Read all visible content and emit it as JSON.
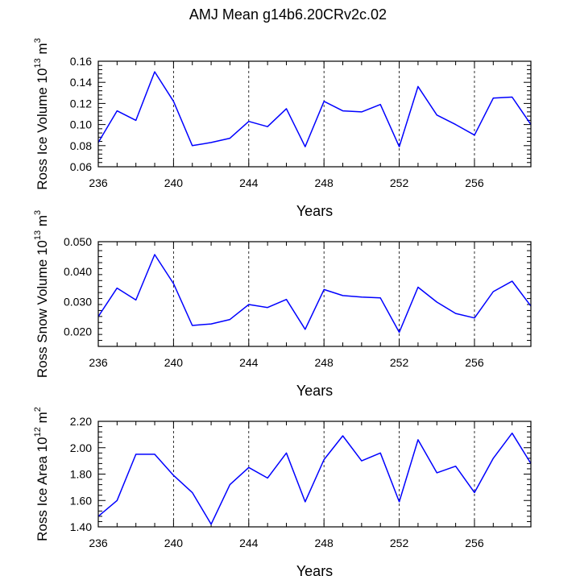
{
  "title": "AMJ Mean g14b6.20CRv2c.02",
  "chart_data": [
    {
      "type": "line",
      "ylabel": "Ross Ice Volume 10",
      "ylabel_exp": "13",
      "ylabel_unit": " m",
      "ylabel_unit_exp": "3",
      "xlabel": "Years",
      "xlim": [
        236,
        259
      ],
      "ylim": [
        0.06,
        0.16
      ],
      "xticks": [
        "236",
        "240",
        "244",
        "248",
        "252",
        "256"
      ],
      "yticks": [
        "0.06",
        "0.08",
        "0.10",
        "0.12",
        "0.14",
        "0.16"
      ],
      "x": [
        236,
        237,
        238,
        239,
        240,
        241,
        242,
        243,
        244,
        245,
        246,
        247,
        248,
        249,
        250,
        251,
        252,
        253,
        254,
        255,
        256,
        257,
        258,
        259
      ],
      "values": [
        0.083,
        0.113,
        0.104,
        0.15,
        0.122,
        0.08,
        0.083,
        0.087,
        0.103,
        0.098,
        0.115,
        0.079,
        0.122,
        0.113,
        0.112,
        0.119,
        0.079,
        0.136,
        0.109,
        0.1,
        0.09,
        0.125,
        0.126,
        0.1
      ],
      "color": "#0000ff"
    },
    {
      "type": "line",
      "ylabel": "Ross Snow Volume 10",
      "ylabel_exp": "13",
      "ylabel_unit": " m",
      "ylabel_unit_exp": "3",
      "xlabel": "Years",
      "xlim": [
        236,
        259
      ],
      "ylim": [
        0.015,
        0.05
      ],
      "xticks": [
        "236",
        "240",
        "244",
        "248",
        "252",
        "256"
      ],
      "yticks": [
        "0.020",
        "0.030",
        "0.040",
        "0.050"
      ],
      "x": [
        236,
        237,
        238,
        239,
        240,
        241,
        242,
        243,
        244,
        245,
        246,
        247,
        248,
        249,
        250,
        251,
        252,
        253,
        254,
        255,
        256,
        257,
        258,
        259
      ],
      "values": [
        0.025,
        0.0345,
        0.0305,
        0.0457,
        0.036,
        0.022,
        0.0225,
        0.024,
        0.029,
        0.028,
        0.0307,
        0.0207,
        0.034,
        0.032,
        0.0315,
        0.0312,
        0.0197,
        0.0348,
        0.0298,
        0.026,
        0.0245,
        0.0333,
        0.0368,
        0.0285
      ],
      "color": "#0000ff"
    },
    {
      "type": "line",
      "ylabel": "Ross Ice Area 10",
      "ylabel_exp": "12",
      "ylabel_unit": " m",
      "ylabel_unit_exp": "2",
      "xlabel": "Years",
      "xlim": [
        236,
        259
      ],
      "ylim": [
        1.4,
        2.2
      ],
      "xticks": [
        "236",
        "240",
        "244",
        "248",
        "252",
        "256"
      ],
      "yticks": [
        "1.40",
        "1.60",
        "1.80",
        "2.00",
        "2.20"
      ],
      "x": [
        236,
        237,
        238,
        239,
        240,
        241,
        242,
        243,
        244,
        245,
        246,
        247,
        248,
        249,
        250,
        251,
        252,
        253,
        254,
        255,
        256,
        257,
        258,
        259
      ],
      "values": [
        1.48,
        1.6,
        1.95,
        1.95,
        1.79,
        1.66,
        1.42,
        1.72,
        1.85,
        1.77,
        1.96,
        1.59,
        1.91,
        2.09,
        1.9,
        1.96,
        1.59,
        2.06,
        1.81,
        1.86,
        1.66,
        1.92,
        2.11,
        1.88
      ],
      "color": "#0000ff"
    }
  ]
}
